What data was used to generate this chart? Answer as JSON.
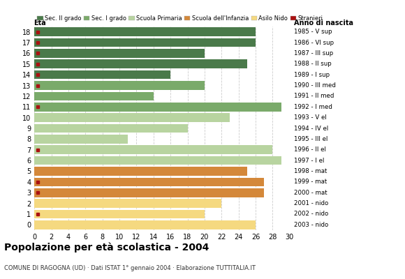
{
  "ages": [
    18,
    17,
    16,
    15,
    14,
    13,
    12,
    11,
    10,
    9,
    8,
    7,
    6,
    5,
    4,
    3,
    2,
    1,
    0
  ],
  "years": [
    "1985 - V sup",
    "1986 - VI sup",
    "1987 - III sup",
    "1988 - II sup",
    "1989 - I sup",
    "1990 - III med",
    "1991 - II med",
    "1992 - I med",
    "1993 - V el",
    "1994 - IV el",
    "1995 - III el",
    "1996 - II el",
    "1997 - I el",
    "1998 - mat",
    "1999 - mat",
    "2000 - mat",
    "2001 - nido",
    "2002 - nido",
    "2003 - nido"
  ],
  "bar_values": [
    26,
    26,
    20,
    25,
    16,
    20,
    14,
    29,
    23,
    18,
    11,
    28,
    29,
    25,
    27,
    27,
    22,
    20,
    26
  ],
  "stranieri": [
    1,
    1,
    1,
    1,
    1,
    1,
    0,
    1,
    0,
    0,
    0,
    1,
    0,
    0,
    1,
    1,
    0,
    1,
    0
  ],
  "categories": [
    "Sec. II grado",
    "Sec. I grado",
    "Scuola Primaria",
    "Scuola dell'Infanzia",
    "Asilo Nido"
  ],
  "bar_colors": [
    "#4a7a4a",
    "#7aaa6a",
    "#b8d4a0",
    "#d4883a",
    "#f5d980"
  ],
  "stranieri_color": "#aa1111",
  "age_category": {
    "18": 0,
    "17": 0,
    "16": 0,
    "15": 0,
    "14": 0,
    "13": 1,
    "12": 1,
    "11": 1,
    "10": 2,
    "9": 2,
    "8": 2,
    "7": 2,
    "6": 2,
    "5": 3,
    "4": 3,
    "3": 3,
    "2": 4,
    "1": 4,
    "0": 4
  },
  "title": "Popolazione per età scolastica - 2004",
  "subtitle": "COMUNE DI RAGOGNA (UD) · Dati ISTAT 1° gennaio 2004 · Elaborazione TUTTITALIA.IT",
  "xlabel_eta": "Età",
  "xlabel_anno": "Anno di nascita",
  "xlim": [
    0,
    30
  ],
  "xticks": [
    0,
    2,
    4,
    6,
    8,
    10,
    12,
    14,
    16,
    18,
    20,
    22,
    24,
    26,
    28,
    30
  ],
  "background_color": "#ffffff",
  "grid_color": "#cccccc"
}
